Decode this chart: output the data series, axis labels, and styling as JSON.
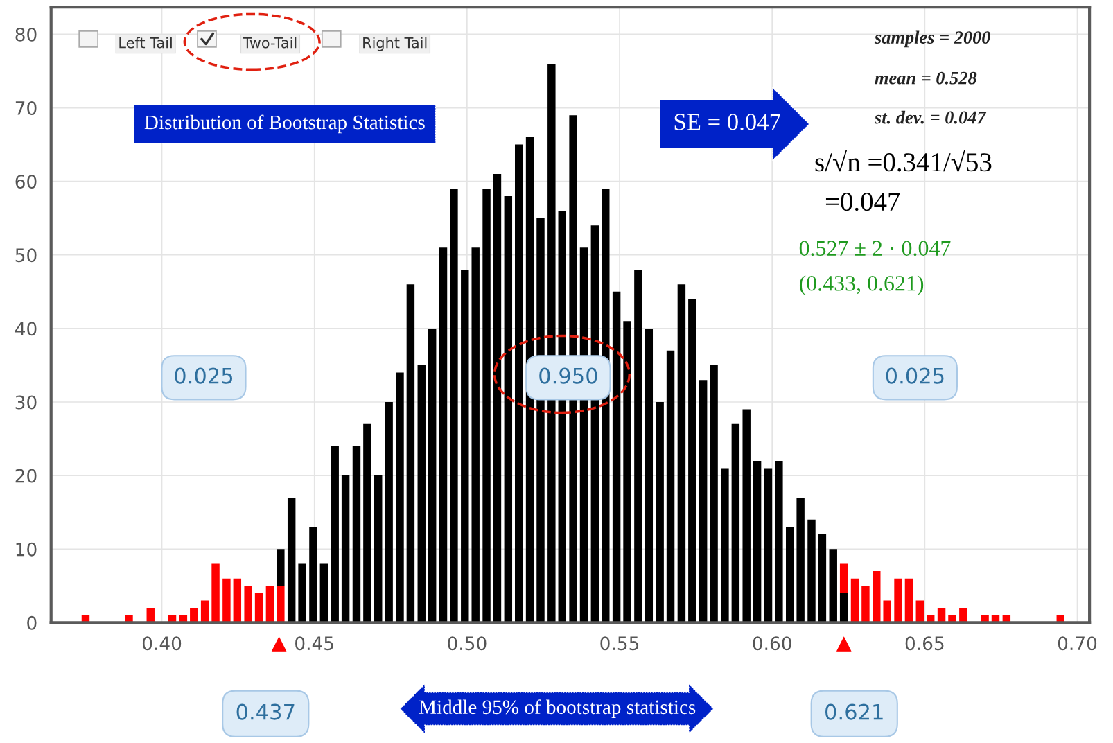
{
  "chart_data": {
    "type": "bar",
    "stacked": true,
    "grid": true,
    "xlim": [
      0.3637,
      0.704
    ],
    "ylim": [
      0,
      83.7
    ],
    "xticks": [
      {
        "value": 0.4,
        "label": "0.40"
      },
      {
        "value": 0.45,
        "label": "0.45"
      },
      {
        "value": 0.5,
        "label": "0.50"
      },
      {
        "value": 0.55,
        "label": "0.55"
      },
      {
        "value": 0.6,
        "label": "0.60"
      },
      {
        "value": 0.65,
        "label": "0.65"
      },
      {
        "value": 0.7,
        "label": "0.70"
      }
    ],
    "yticks": [
      0,
      10,
      20,
      30,
      40,
      50,
      60,
      70,
      80
    ],
    "x": [
      0.375,
      0.3786,
      0.3821,
      0.3857,
      0.3892,
      0.3928,
      0.3963,
      0.3999,
      0.4034,
      0.407,
      0.4105,
      0.4141,
      0.4176,
      0.4212,
      0.4247,
      0.4283,
      0.4318,
      0.4354,
      0.4389,
      0.4425,
      0.446,
      0.4496,
      0.4531,
      0.4567,
      0.4602,
      0.4638,
      0.4673,
      0.4709,
      0.4744,
      0.478,
      0.4815,
      0.4851,
      0.4886,
      0.4922,
      0.4957,
      0.4993,
      0.5028,
      0.5064,
      0.5099,
      0.5135,
      0.517,
      0.5206,
      0.5241,
      0.5277,
      0.5312,
      0.5348,
      0.5383,
      0.5419,
      0.5454,
      0.549,
      0.5525,
      0.5561,
      0.5596,
      0.5632,
      0.5667,
      0.5703,
      0.5738,
      0.5774,
      0.5809,
      0.5845,
      0.588,
      0.5916,
      0.5951,
      0.5987,
      0.6022,
      0.6058,
      0.6093,
      0.6129,
      0.6164,
      0.62,
      0.6235,
      0.6271,
      0.6306,
      0.6342,
      0.6377,
      0.6413,
      0.6448,
      0.6484,
      0.6519,
      0.6555,
      0.659,
      0.6626,
      0.6661,
      0.6697,
      0.6732,
      0.6768,
      0.6803,
      0.6839,
      0.6874,
      0.691,
      0.6945
    ],
    "series": [
      {
        "color": "#ff0000",
        "values": [
          1,
          0,
          0,
          0,
          1,
          0,
          2,
          0,
          1,
          1,
          2,
          3,
          8,
          6,
          6,
          5,
          4,
          5,
          5,
          null,
          null,
          null,
          null,
          null,
          null,
          null,
          null,
          null,
          null,
          null,
          null,
          null,
          null,
          null,
          null,
          null,
          null,
          null,
          null,
          null,
          null,
          null,
          null,
          null,
          null,
          null,
          null,
          null,
          null,
          null,
          null,
          null,
          null,
          null,
          null,
          null,
          null,
          null,
          null,
          null,
          null,
          null,
          null,
          null,
          null,
          null,
          null,
          null,
          null,
          null,
          null,
          null,
          null,
          null,
          null,
          null,
          null,
          null,
          null,
          null,
          null,
          null,
          null,
          null,
          null,
          null,
          null,
          null,
          null,
          null,
          null
        ]
      },
      {
        "color": "#000000",
        "values": [
          null,
          null,
          null,
          null,
          null,
          null,
          null,
          null,
          null,
          null,
          null,
          null,
          null,
          null,
          null,
          null,
          null,
          null,
          5,
          17,
          8,
          13,
          8,
          24,
          20,
          24,
          27,
          20,
          30,
          34,
          46,
          35,
          40,
          51,
          59,
          48,
          51,
          59,
          61,
          58,
          65,
          66,
          55,
          76,
          56,
          69,
          51,
          54,
          59,
          45,
          41,
          48,
          40,
          30,
          37,
          46,
          44,
          33,
          35,
          21,
          27,
          29,
          22,
          21,
          22,
          13,
          17,
          14,
          12,
          10,
          4,
          null,
          null,
          null,
          null,
          null,
          null,
          null,
          null,
          null,
          null,
          null,
          null,
          null,
          null,
          null,
          null,
          null,
          null,
          null,
          null
        ]
      },
      {
        "color": "#ff0000",
        "values": [
          null,
          null,
          null,
          null,
          null,
          null,
          null,
          null,
          null,
          null,
          null,
          null,
          null,
          null,
          null,
          null,
          null,
          null,
          null,
          null,
          null,
          null,
          null,
          null,
          null,
          null,
          null,
          null,
          null,
          null,
          null,
          null,
          null,
          null,
          null,
          null,
          null,
          null,
          null,
          null,
          null,
          null,
          null,
          null,
          null,
          null,
          null,
          null,
          null,
          null,
          null,
          null,
          null,
          null,
          null,
          null,
          null,
          null,
          null,
          null,
          null,
          null,
          null,
          null,
          null,
          null,
          null,
          null,
          null,
          null,
          4,
          6,
          5,
          7,
          3,
          6,
          6,
          3,
          1,
          2,
          1,
          2,
          0,
          1,
          1,
          1,
          0,
          0,
          0,
          0,
          1
        ]
      }
    ],
    "annotations": [
      "Left Tail",
      "Two-Tail",
      "Right Tail",
      "Distribution of Bootstrap Statistics",
      "SE = 0.047",
      "samples = 2000",
      "mean = 0.528",
      "st. dev. = 0.047",
      "s/√n =0.341/√53",
      "=0.047",
      "0.527 ± 2 · 0.047",
      "(0.433, 0.621)",
      "0.025",
      "0.950",
      "0.025",
      "0.437",
      "0.621",
      "Middle 95% of bootstrap statistics"
    ]
  }
}
